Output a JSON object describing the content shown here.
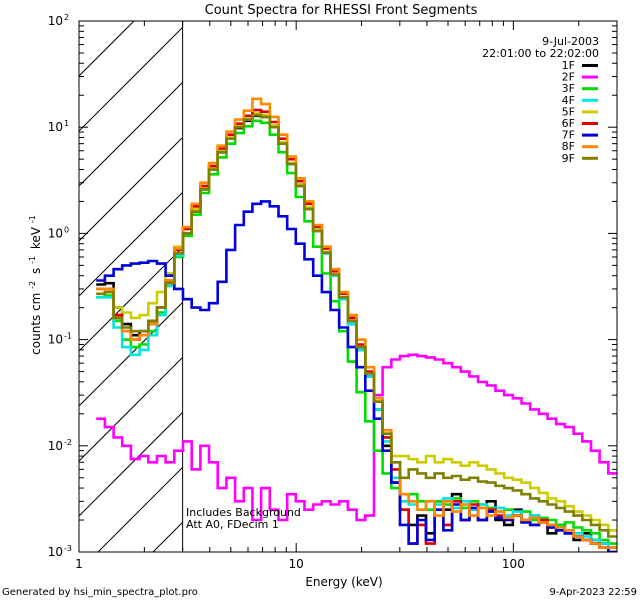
{
  "chart_data": {
    "type": "line",
    "title": "Count Spectra for RHESSI Front Segments",
    "xlabel": "Energy (keV)",
    "ylabel": "counts cm",
    "ylabel_sup1": "-2",
    "ylabel_mid": "s",
    "ylabel_sup2": "-1",
    "ylabel_end": "keV",
    "ylabel_sup3": "-1",
    "x_scale": "log",
    "y_scale": "log",
    "xlim": [
      1,
      300
    ],
    "ylim": [
      0.001,
      100
    ],
    "x_ticks": [
      {
        "v": 10,
        "label": "10"
      },
      {
        "v": 100,
        "label": "100"
      }
    ],
    "x_tick_left_label": "1",
    "y_ticks": [
      {
        "v": 100,
        "base": "10",
        "exp": "2"
      },
      {
        "v": 10,
        "base": "10",
        "exp": "1"
      },
      {
        "v": 1,
        "base": "10",
        "exp": "0"
      },
      {
        "v": 0.1,
        "base": "10",
        "exp": "-1"
      },
      {
        "v": 0.01,
        "base": "10",
        "exp": "-2"
      },
      {
        "v": 0.001,
        "base": "10",
        "exp": "-3"
      }
    ],
    "hatched_region_keV": [
      1,
      3
    ],
    "date_label": "9-Jul-2003",
    "time_range_label": "22:01:00 to 22:02:00",
    "annotation_line1": "Includes Background",
    "annotation_line2": "Att A0, FDecim 1",
    "footer_left": "Generated by hsi_min_spectra_plot.pro",
    "footer_right": "9-Apr-2023 22:59",
    "series": [
      {
        "name": "1F",
        "color": "#000000",
        "values": [
          0.33,
          0.34,
          0.2,
          0.14,
          0.11,
          0.12,
          0.15,
          0.2,
          0.35,
          0.65,
          1.0,
          1.6,
          2.6,
          4.0,
          5.8,
          7.8,
          9.8,
          11.5,
          12.8,
          12.5,
          10.0,
          7.0,
          4.5,
          2.8,
          1.7,
          1.05,
          0.65,
          0.4,
          0.24,
          0.14,
          0.08,
          0.045,
          0.022,
          0.01,
          0.0045,
          0.0025,
          0.0018,
          0.0022,
          0.0015,
          0.003,
          0.0025,
          0.0035,
          0.002,
          0.0025,
          0.002,
          0.003,
          0.002,
          0.0018,
          0.0025,
          0.002,
          0.0022,
          0.002,
          0.0015,
          0.0018,
          0.0015,
          0.0013,
          0.0015,
          0.0013,
          0.0012,
          0.0011
        ]
      },
      {
        "name": "2F",
        "color": "#ff00ff",
        "values": [
          0.018,
          0.015,
          0.012,
          0.01,
          0.0075,
          0.008,
          0.007,
          0.008,
          0.007,
          0.009,
          0.011,
          0.006,
          0.01,
          0.007,
          0.004,
          0.005,
          0.003,
          0.004,
          0.002,
          0.004,
          0.0025,
          0.002,
          0.0035,
          0.003,
          0.0025,
          0.0028,
          0.003,
          0.0028,
          0.003,
          0.0025,
          0.002,
          0.0022,
          0.03,
          0.055,
          0.065,
          0.07,
          0.072,
          0.07,
          0.068,
          0.065,
          0.06,
          0.055,
          0.05,
          0.045,
          0.04,
          0.037,
          0.033,
          0.03,
          0.028,
          0.025,
          0.022,
          0.02,
          0.018,
          0.016,
          0.015,
          0.013,
          0.011,
          0.009,
          0.007,
          0.0055
        ]
      },
      {
        "name": "3F",
        "color": "#00dd00",
        "values": [
          0.25,
          0.26,
          0.15,
          0.1,
          0.085,
          0.09,
          0.12,
          0.18,
          0.32,
          0.6,
          0.95,
          1.5,
          2.4,
          3.6,
          5.2,
          7.0,
          8.8,
          10.2,
          11.5,
          11.0,
          8.5,
          5.8,
          3.7,
          2.2,
          1.3,
          0.75,
          0.42,
          0.23,
          0.12,
          0.062,
          0.032,
          0.017,
          0.009,
          0.0055,
          0.004,
          0.003,
          0.0035,
          0.003,
          0.0025,
          0.003,
          0.0028,
          0.0032,
          0.0026,
          0.003,
          0.0028,
          0.0026,
          0.0024,
          0.0025,
          0.0022,
          0.0024,
          0.002,
          0.0021,
          0.002,
          0.0018,
          0.0019,
          0.0017,
          0.0016,
          0.0015,
          0.0013,
          0.0012
        ]
      },
      {
        "name": "4F",
        "color": "#00e5e5",
        "values": [
          0.25,
          0.25,
          0.13,
          0.085,
          0.072,
          0.08,
          0.11,
          0.17,
          0.32,
          0.62,
          1.0,
          1.6,
          2.6,
          4.0,
          5.8,
          7.8,
          10.0,
          11.8,
          13.2,
          12.8,
          10.2,
          7.0,
          4.5,
          2.8,
          1.7,
          1.05,
          0.65,
          0.4,
          0.24,
          0.14,
          0.08,
          0.045,
          0.022,
          0.011,
          0.005,
          0.003,
          0.0028,
          0.0025,
          0.003,
          0.0028,
          0.0032,
          0.0026,
          0.003,
          0.0025,
          0.0028,
          0.0024,
          0.0026,
          0.0022,
          0.0024,
          0.002,
          0.0022,
          0.002,
          0.0018,
          0.0017,
          0.0016,
          0.0015,
          0.0014,
          0.0013,
          0.0012,
          0.0011
        ]
      },
      {
        "name": "5F",
        "color": "#cccc00",
        "values": [
          0.27,
          0.28,
          0.2,
          0.18,
          0.16,
          0.17,
          0.22,
          0.28,
          0.42,
          0.75,
          1.1,
          1.7,
          2.7,
          4.1,
          6.0,
          8.0,
          10.2,
          12.0,
          13.5,
          13.0,
          10.4,
          7.2,
          4.6,
          2.9,
          1.75,
          1.08,
          0.67,
          0.41,
          0.25,
          0.15,
          0.085,
          0.048,
          0.026,
          0.013,
          0.008,
          0.008,
          0.0075,
          0.007,
          0.008,
          0.007,
          0.0075,
          0.007,
          0.0065,
          0.007,
          0.0065,
          0.006,
          0.0055,
          0.005,
          0.0048,
          0.0045,
          0.004,
          0.0036,
          0.0032,
          0.003,
          0.0027,
          0.0024,
          0.0022,
          0.002,
          0.0018,
          0.0016
        ]
      },
      {
        "name": "6F",
        "color": "#e00000",
        "values": [
          0.3,
          0.3,
          0.17,
          0.12,
          0.1,
          0.11,
          0.14,
          0.2,
          0.36,
          0.7,
          1.1,
          1.8,
          2.8,
          4.3,
          6.3,
          8.5,
          10.8,
          12.8,
          14.5,
          14.0,
          11.2,
          7.8,
          5.0,
          3.1,
          1.9,
          1.15,
          0.72,
          0.44,
          0.27,
          0.16,
          0.09,
          0.05,
          0.026,
          0.012,
          0.006,
          0.0025,
          0.0012,
          0.0018,
          0.0012,
          0.0025,
          0.0018,
          0.003,
          0.002,
          0.0028,
          0.002,
          0.0025,
          0.0022,
          0.002,
          0.0022,
          0.002,
          0.0018,
          0.002,
          0.0017,
          0.0016,
          0.0015,
          0.0014,
          0.0013,
          0.0012,
          0.0011,
          0.001
        ]
      },
      {
        "name": "7F",
        "color": "#0000dd",
        "values": [
          0.36,
          0.4,
          0.46,
          0.5,
          0.52,
          0.53,
          0.55,
          0.52,
          0.4,
          0.3,
          0.24,
          0.2,
          0.19,
          0.22,
          0.35,
          0.7,
          1.2,
          1.6,
          1.9,
          2.0,
          1.8,
          1.45,
          1.1,
          0.8,
          0.57,
          0.4,
          0.28,
          0.19,
          0.13,
          0.085,
          0.055,
          0.033,
          0.018,
          0.009,
          0.0045,
          0.0018,
          0.0012,
          0.002,
          0.0013,
          0.0025,
          0.0016,
          0.0028,
          0.002,
          0.0026,
          0.002,
          0.0024,
          0.0021,
          0.002,
          0.0022,
          0.0019,
          0.0018,
          0.0019,
          0.0017,
          0.0016,
          0.0015,
          0.0014,
          0.0013,
          0.0012,
          0.0011,
          0.001
        ]
      },
      {
        "name": "8F",
        "color": "#ff8800",
        "values": [
          0.3,
          0.3,
          0.16,
          0.12,
          0.1,
          0.11,
          0.14,
          0.2,
          0.36,
          0.72,
          1.15,
          1.9,
          3.0,
          4.6,
          6.7,
          9.1,
          11.8,
          14.3,
          18.5,
          16.5,
          12.5,
          8.5,
          5.3,
          3.3,
          2.0,
          1.2,
          0.75,
          0.46,
          0.28,
          0.17,
          0.1,
          0.055,
          0.028,
          0.014,
          0.007,
          0.0035,
          0.003,
          0.0025,
          0.003,
          0.0022,
          0.003,
          0.0024,
          0.0028,
          0.0022,
          0.0026,
          0.0022,
          0.0024,
          0.0021,
          0.0022,
          0.002,
          0.0021,
          0.0019,
          0.0018,
          0.0017,
          0.0016,
          0.0014,
          0.0013,
          0.0012,
          0.0011,
          0.0011
        ]
      },
      {
        "name": "9F",
        "color": "#808000",
        "values": [
          0.27,
          0.28,
          0.16,
          0.13,
          0.12,
          0.12,
          0.15,
          0.2,
          0.34,
          0.65,
          1.0,
          1.6,
          2.6,
          4.0,
          5.8,
          7.8,
          10.0,
          11.8,
          13.0,
          12.5,
          10.0,
          7.0,
          4.5,
          2.8,
          1.7,
          1.05,
          0.66,
          0.41,
          0.25,
          0.15,
          0.085,
          0.048,
          0.026,
          0.013,
          0.007,
          0.005,
          0.006,
          0.0055,
          0.005,
          0.0055,
          0.005,
          0.0052,
          0.0048,
          0.005,
          0.0046,
          0.0045,
          0.0042,
          0.004,
          0.0038,
          0.0035,
          0.0032,
          0.003,
          0.0028,
          0.0026,
          0.0024,
          0.0022,
          0.002,
          0.0018,
          0.0016,
          0.0014
        ]
      }
    ]
  }
}
